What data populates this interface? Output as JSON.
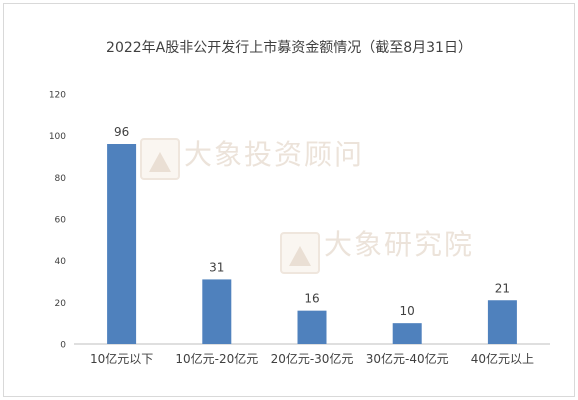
{
  "chart_data": {
    "type": "bar",
    "title": "2022年A股非公开发行上市募资金额情况（截至8月31日）",
    "categories": [
      "10亿元以下",
      "10亿元-20亿元",
      "20亿元-30亿元",
      "30亿元-40亿元",
      "40亿元以上"
    ],
    "values": [
      96,
      31,
      16,
      10,
      21
    ],
    "ylim": [
      0,
      120
    ],
    "yticks": [
      0,
      20,
      40,
      60,
      80,
      100,
      120
    ],
    "xlabel": "",
    "ylabel": "",
    "grid": false,
    "legend": "none",
    "bar_color": "#4f81bd",
    "data_labels": true
  },
  "watermarks": [
    "大象投资顾问",
    "大象研究院"
  ],
  "colors": {
    "text": "#404040",
    "axis": "#bfbfbf",
    "watermark": "#ece3da"
  }
}
